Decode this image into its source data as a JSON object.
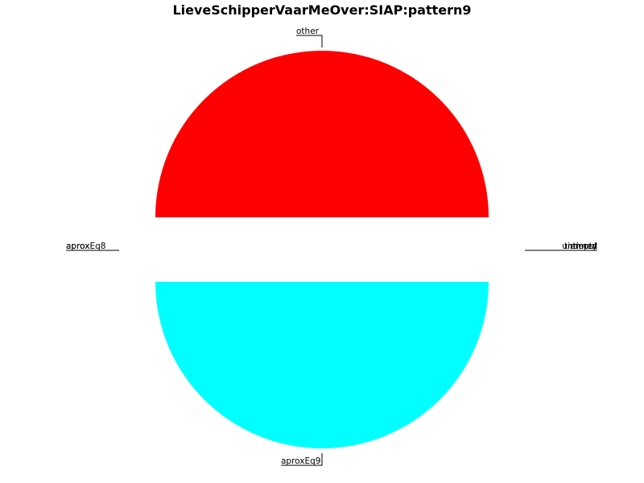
{
  "chart_data": {
    "type": "pie",
    "title": "LieveSchipperVaarMeOver:SIAP:pattern9",
    "slices": [
      {
        "name": "other",
        "value": 50,
        "color": "#ff0000",
        "labelSide": "top"
      },
      {
        "name": "aprox",
        "value": 0,
        "color": "#ff0000",
        "labelSide": "left"
      },
      {
        "name": "aproxEq8",
        "value": 0,
        "color": "#ff0000",
        "labelSide": "left"
      },
      {
        "name": "aproxEq9",
        "value": 50,
        "color": "#00ffff",
        "labelSide": "bottom"
      },
      {
        "name": "timed",
        "value": 0,
        "color": "#00ffff",
        "labelSide": "right"
      },
      {
        "name": "untimed",
        "value": 0,
        "color": "#00ffff",
        "labelSide": "right"
      },
      {
        "name": "timeout",
        "value": 0,
        "color": "#00ffff",
        "labelSide": "right"
      },
      {
        "name": "empty",
        "value": 0,
        "color": "#00ffff",
        "labelSide": "right"
      }
    ]
  }
}
